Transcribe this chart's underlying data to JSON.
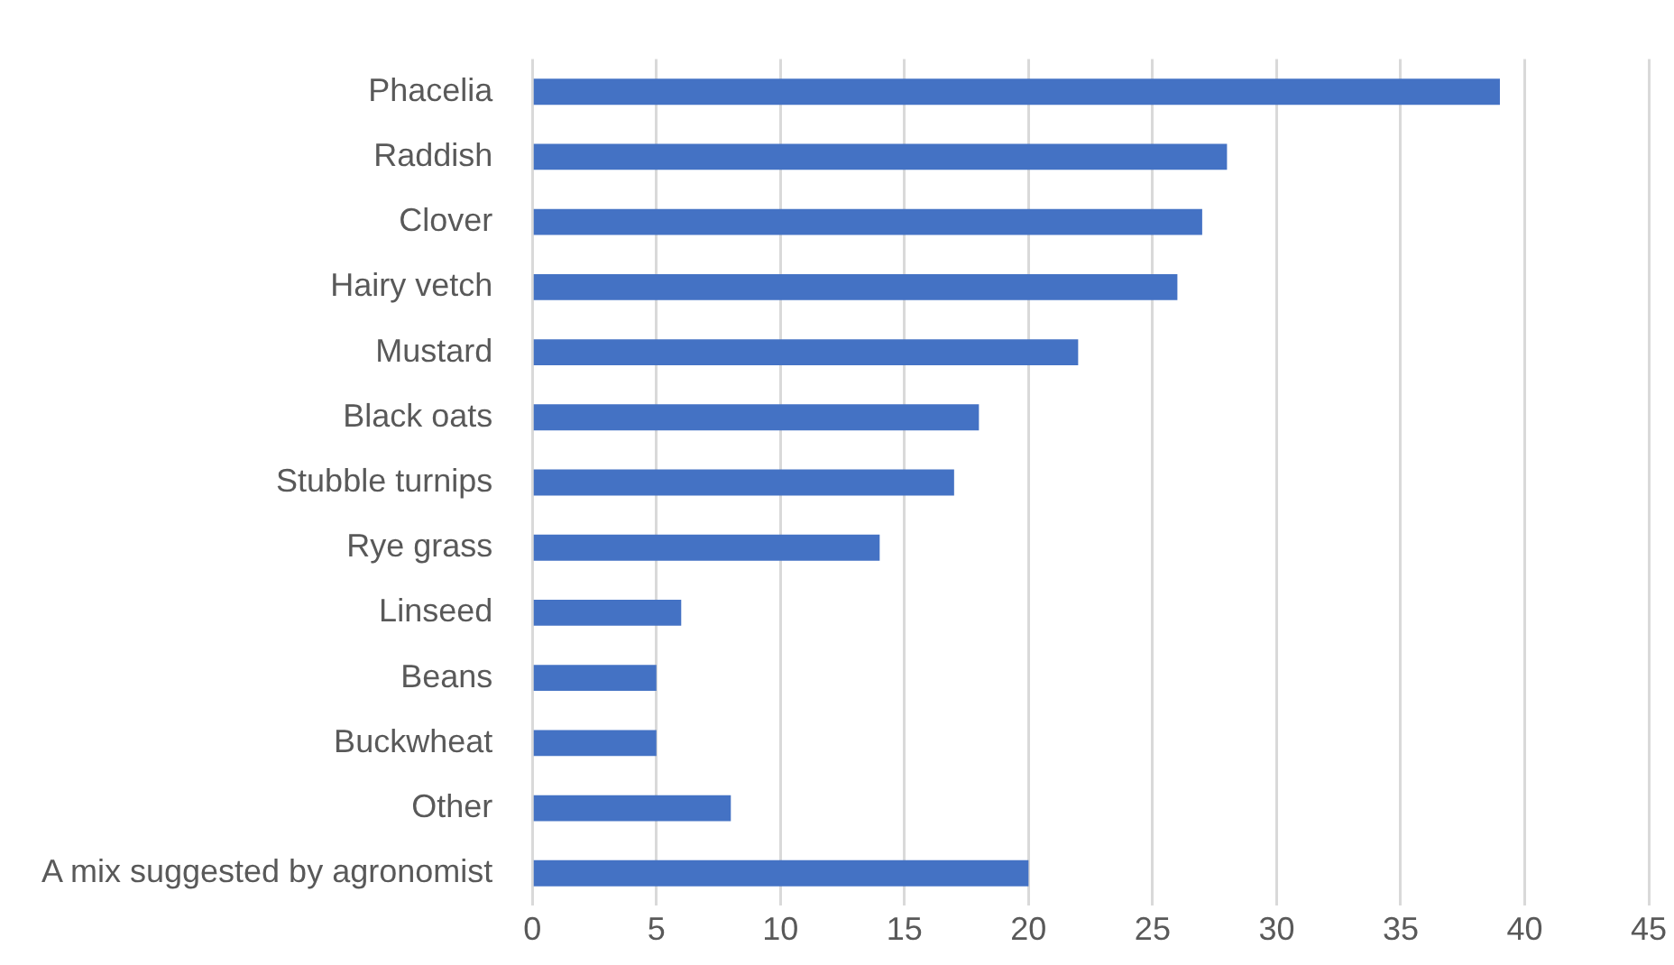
{
  "chart_data": {
    "type": "bar",
    "orientation": "horizontal",
    "categories": [
      "Phacelia",
      "Raddish",
      "Clover",
      "Hairy vetch",
      "Mustard",
      "Black oats",
      "Stubble turnips",
      "Rye grass",
      "Linseed",
      "Beans",
      "Buckwheat",
      "Other",
      "A mix suggested by agronomist"
    ],
    "values": [
      39,
      28,
      27,
      26,
      22,
      18,
      17,
      14,
      6,
      5,
      5,
      8,
      20
    ],
    "color": "#4472c4",
    "xlim": [
      0,
      45
    ],
    "xticks": [
      0,
      5,
      10,
      15,
      20,
      25,
      30,
      35,
      40,
      45
    ],
    "grid": "x",
    "legend": false
  }
}
